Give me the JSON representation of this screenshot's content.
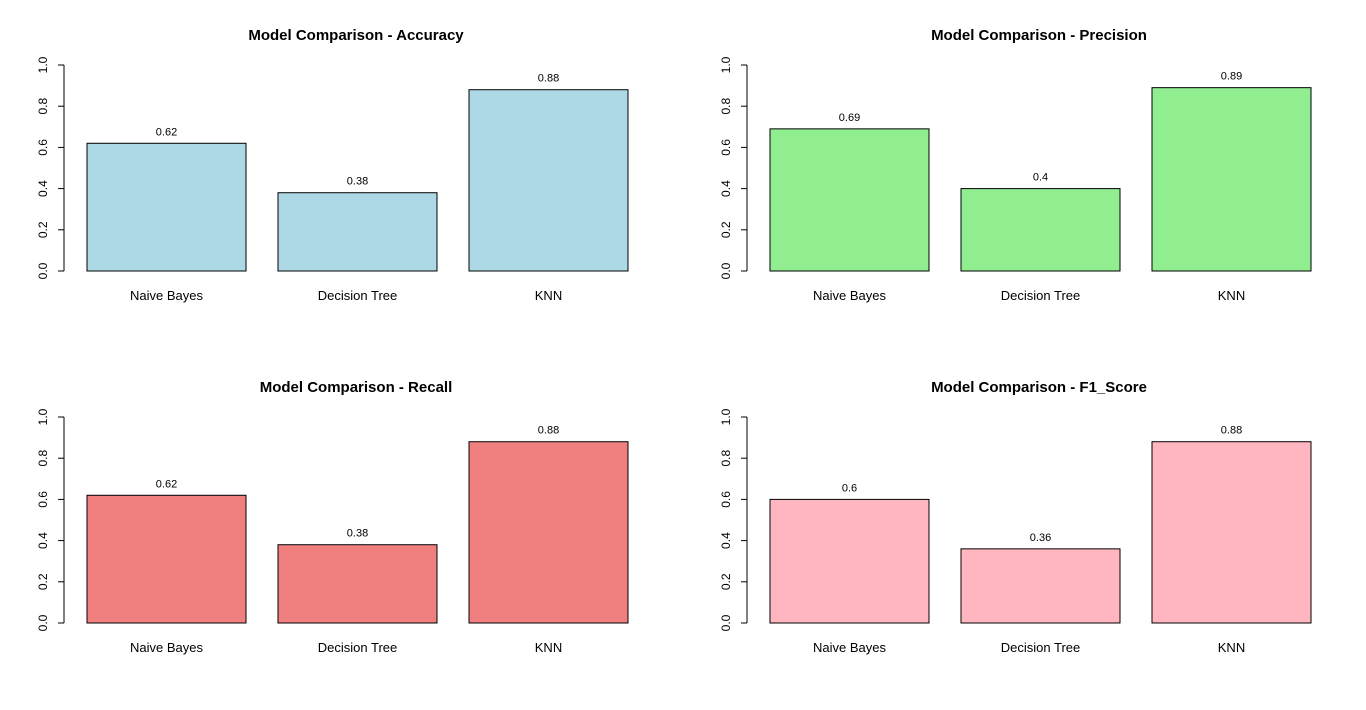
{
  "chart_data": [
    {
      "type": "bar",
      "title": "Model Comparison - Accuracy",
      "categories": [
        "Naive Bayes",
        "Decision Tree",
        "KNN"
      ],
      "values": [
        0.62,
        0.38,
        0.88
      ],
      "value_labels": [
        "0.62",
        "0.38",
        "0.88"
      ],
      "ylim": [
        0,
        1
      ],
      "yticks": [
        "0.0",
        "0.2",
        "0.4",
        "0.6",
        "0.8",
        "1.0"
      ],
      "bar_color": "#add8e6"
    },
    {
      "type": "bar",
      "title": "Model Comparison - Precision",
      "categories": [
        "Naive Bayes",
        "Decision Tree",
        "KNN"
      ],
      "values": [
        0.69,
        0.4,
        0.89
      ],
      "value_labels": [
        "0.69",
        "0.4",
        "0.89"
      ],
      "ylim": [
        0,
        1
      ],
      "yticks": [
        "0.0",
        "0.2",
        "0.4",
        "0.6",
        "0.8",
        "1.0"
      ],
      "bar_color": "#90ee90"
    },
    {
      "type": "bar",
      "title": "Model Comparison - Recall",
      "categories": [
        "Naive Bayes",
        "Decision Tree",
        "KNN"
      ],
      "values": [
        0.62,
        0.38,
        0.88
      ],
      "value_labels": [
        "0.62",
        "0.38",
        "0.88"
      ],
      "ylim": [
        0,
        1
      ],
      "yticks": [
        "0.0",
        "0.2",
        "0.4",
        "0.6",
        "0.8",
        "1.0"
      ],
      "bar_color": "#f08080"
    },
    {
      "type": "bar",
      "title": "Model Comparison - F1_Score",
      "categories": [
        "Naive Bayes",
        "Decision Tree",
        "KNN"
      ],
      "values": [
        0.6,
        0.36,
        0.88
      ],
      "value_labels": [
        "0.6",
        "0.36",
        "0.88"
      ],
      "ylim": [
        0,
        1
      ],
      "yticks": [
        "0.0",
        "0.2",
        "0.4",
        "0.6",
        "0.8",
        "1.0"
      ],
      "bar_color": "#ffb6c1"
    }
  ]
}
